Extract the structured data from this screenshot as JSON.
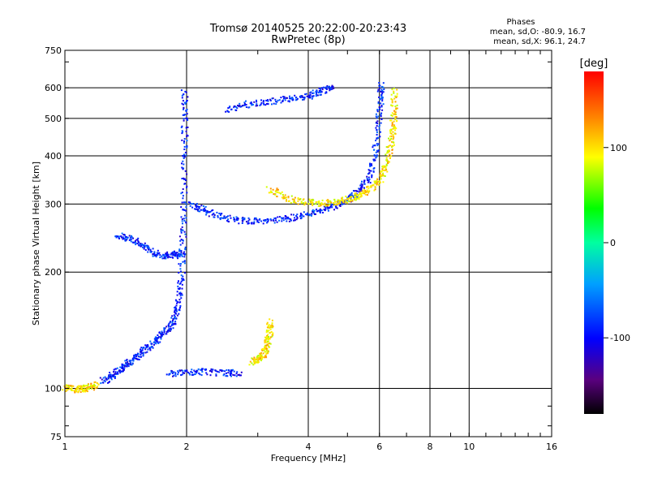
{
  "chart_data": {
    "type": "scatter",
    "title": "Tromsø 20140525 20:22:00-20:23:43",
    "subtitle": "RwPretec (8p)",
    "xlabel": "Frequency [MHz]",
    "ylabel": "Stationary phase Virtual Height [km]",
    "x_scale": "log",
    "y_scale": "log",
    "xlim": [
      1,
      16
    ],
    "ylim": [
      75,
      750
    ],
    "x_ticks": [
      1,
      2,
      4,
      6,
      8,
      10,
      16
    ],
    "x_tick_labels": [
      "1",
      "2",
      "4",
      "6",
      "8",
      "10",
      "16"
    ],
    "y_ticks": [
      75,
      100,
      200,
      300,
      400,
      500,
      600,
      750
    ],
    "y_tick_labels": [
      "75",
      "100",
      "200",
      "300",
      "400",
      "500",
      "600",
      "750"
    ],
    "grid": true,
    "phases_box": {
      "heading": "Phases",
      "line1": "mean, sd,O: -80.9, 16.7",
      "line2": "mean, sd,X:  96.1, 24.7"
    },
    "colorbar": {
      "label": "[deg]",
      "range": [
        -180,
        180
      ],
      "ticks": [
        100,
        0,
        -100
      ],
      "tick_labels": [
        "100",
        "0",
        "-100"
      ]
    },
    "series": [
      {
        "mode": "O",
        "phase_deg": -90,
        "traces": [
          [
            [
              1.24,
              105
            ],
            [
              1.3,
              108
            ],
            [
              1.36,
              112
            ],
            [
              1.42,
              116
            ],
            [
              1.48,
              120
            ],
            [
              1.55,
              125
            ],
            [
              1.62,
              130
            ],
            [
              1.7,
              136
            ],
            [
              1.78,
              142
            ],
            [
              1.85,
              150
            ],
            [
              1.9,
              165
            ],
            [
              1.93,
              190
            ],
            [
              1.95,
              240
            ],
            [
              1.96,
              300
            ],
            [
              1.97,
              400
            ],
            [
              1.97,
              500
            ],
            [
              1.97,
              600
            ]
          ],
          [
            [
              1.35,
              250
            ],
            [
              1.45,
              245
            ],
            [
              1.55,
              235
            ],
            [
              1.65,
              226
            ],
            [
              1.75,
              222
            ],
            [
              1.85,
              222
            ],
            [
              1.95,
              225
            ]
          ],
          [
            [
              2.05,
              300
            ],
            [
              2.2,
              290
            ],
            [
              2.4,
              280
            ],
            [
              2.7,
              273
            ],
            [
              3.0,
              272
            ],
            [
              3.4,
              275
            ],
            [
              3.8,
              280
            ],
            [
              4.2,
              288
            ],
            [
              4.6,
              298
            ],
            [
              5.0,
              310
            ],
            [
              5.3,
              325
            ],
            [
              5.6,
              350
            ],
            [
              5.8,
              400
            ],
            [
              5.95,
              480
            ],
            [
              6.0,
              560
            ],
            [
              6.05,
              620
            ]
          ],
          [
            [
              2.5,
              530
            ],
            [
              2.8,
              545
            ],
            [
              3.2,
              555
            ],
            [
              3.6,
              565
            ],
            [
              4.0,
              575
            ],
            [
              4.3,
              590
            ],
            [
              4.6,
              605
            ]
          ],
          [
            [
              1.8,
              110
            ],
            [
              2.0,
              110
            ],
            [
              2.2,
              111
            ],
            [
              2.5,
              110
            ],
            [
              2.7,
              110
            ]
          ]
        ]
      },
      {
        "mode": "X",
        "phase_deg": 100,
        "traces": [
          [
            [
              3.2,
              330
            ],
            [
              3.5,
              312
            ],
            [
              3.9,
              305
            ],
            [
              4.3,
              303
            ],
            [
              4.7,
              305
            ],
            [
              5.1,
              312
            ],
            [
              5.4,
              320
            ],
            [
              5.7,
              332
            ],
            [
              6.0,
              350
            ],
            [
              6.2,
              380
            ],
            [
              6.35,
              420
            ],
            [
              6.45,
              470
            ],
            [
              6.5,
              520
            ],
            [
              6.5,
              600
            ]
          ],
          [
            [
              2.9,
              118
            ],
            [
              3.0,
              120
            ],
            [
              3.1,
              124
            ],
            [
              3.15,
              130
            ],
            [
              3.2,
              140
            ],
            [
              3.2,
              150
            ]
          ],
          [
            [
              1.0,
              101
            ],
            [
              1.05,
              100
            ],
            [
              1.1,
              100
            ],
            [
              1.15,
              101
            ],
            [
              1.2,
              103
            ]
          ]
        ]
      }
    ]
  }
}
